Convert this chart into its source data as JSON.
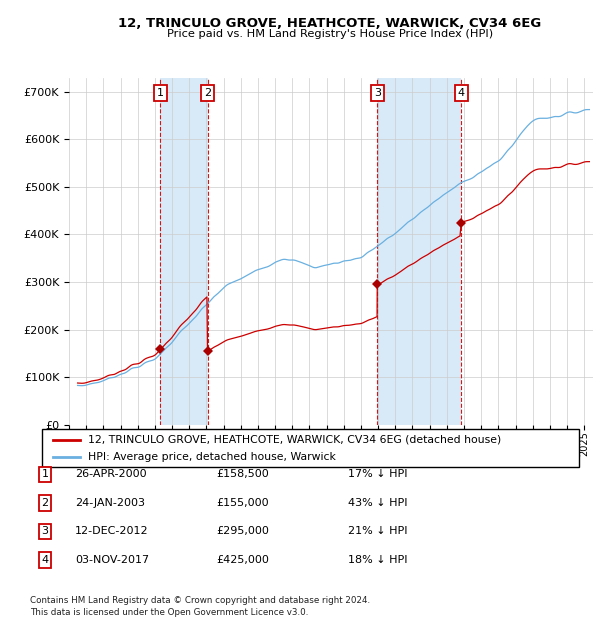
{
  "title": "12, TRINCULO GROVE, HEATHCOTE, WARWICK, CV34 6EG",
  "subtitle": "Price paid vs. HM Land Registry's House Price Index (HPI)",
  "ylim": [
    0,
    730000
  ],
  "yticks": [
    0,
    100000,
    200000,
    300000,
    400000,
    500000,
    600000,
    700000
  ],
  "sale_dates_yr": [
    2000.32,
    2003.07,
    2012.95,
    2017.84
  ],
  "sale_prices": [
    158500,
    155000,
    295000,
    425000
  ],
  "sale_labels": [
    "1",
    "2",
    "3",
    "4"
  ],
  "legend_house": "12, TRINCULO GROVE, HEATHCOTE, WARWICK, CV34 6EG (detached house)",
  "legend_hpi": "HPI: Average price, detached house, Warwick",
  "table_rows": [
    {
      "num": "1",
      "date": "26-APR-2000",
      "price": "£158,500",
      "pct": "17% ↓ HPI"
    },
    {
      "num": "2",
      "date": "24-JAN-2003",
      "price": "£155,000",
      "pct": "43% ↓ HPI"
    },
    {
      "num": "3",
      "date": "12-DEC-2012",
      "price": "£295,000",
      "pct": "21% ↓ HPI"
    },
    {
      "num": "4",
      "date": "03-NOV-2017",
      "price": "£425,000",
      "pct": "18% ↓ HPI"
    }
  ],
  "footer": "Contains HM Land Registry data © Crown copyright and database right 2024.\nThis data is licensed under the Open Government Licence v3.0.",
  "house_color": "#cc0000",
  "hpi_color": "#6ab0e0",
  "shade_color": "#d8eaf8",
  "grid_color": "#cccccc",
  "sale_marker_color": "#aa0000",
  "vline_color": "#cc0000",
  "box_color": "#cc0000",
  "xmin": 1995.5,
  "xmax": 2025.3
}
